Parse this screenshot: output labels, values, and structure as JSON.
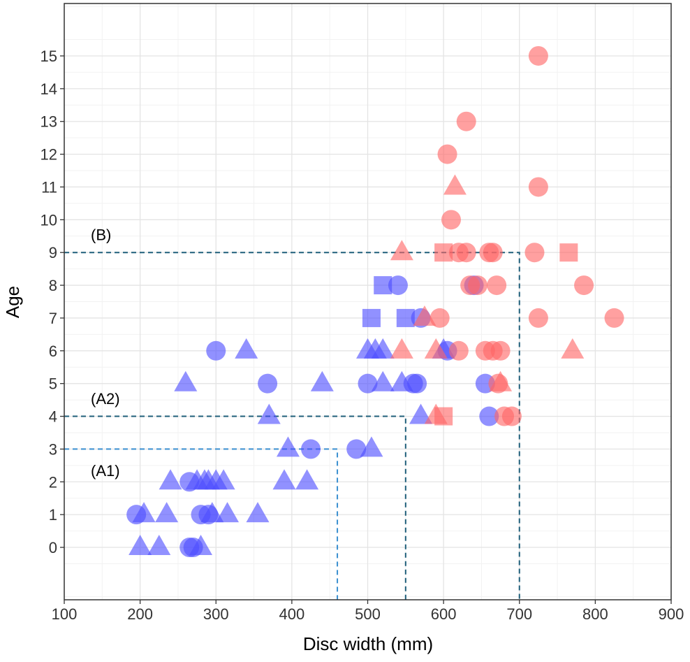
{
  "chart_data": {
    "type": "scatter",
    "title": "",
    "xlabel": "Disc width (mm)",
    "ylabel": "Age",
    "xlim": [
      100,
      900
    ],
    "ylim": [
      -1.6,
      16.6
    ],
    "x_ticks": [
      100,
      200,
      300,
      400,
      500,
      600,
      700,
      800,
      900
    ],
    "y_ticks": [
      0,
      1,
      2,
      3,
      4,
      5,
      6,
      7,
      8,
      9,
      10,
      11,
      12,
      13,
      14,
      15
    ],
    "grid": true,
    "legend": "none",
    "colors": {
      "blue": "#4d4dff",
      "red": "#ff6666",
      "guide_dark": "#1f5f7a",
      "guide_light": "#3a8fd0"
    },
    "series": [
      {
        "color": "blue",
        "points": [
          {
            "x": 195,
            "y": 1,
            "shape": "circle"
          },
          {
            "x": 205,
            "y": 1,
            "shape": "triangle"
          },
          {
            "x": 235,
            "y": 1,
            "shape": "triangle"
          },
          {
            "x": 280,
            "y": 1,
            "shape": "circle"
          },
          {
            "x": 290,
            "y": 1,
            "shape": "circle"
          },
          {
            "x": 295,
            "y": 1,
            "shape": "triangle"
          },
          {
            "x": 315,
            "y": 1,
            "shape": "triangle"
          },
          {
            "x": 355,
            "y": 1,
            "shape": "triangle"
          },
          {
            "x": 200,
            "y": 0,
            "shape": "triangle"
          },
          {
            "x": 225,
            "y": 0,
            "shape": "triangle"
          },
          {
            "x": 265,
            "y": 0,
            "shape": "circle"
          },
          {
            "x": 270,
            "y": 0,
            "shape": "circle"
          },
          {
            "x": 280,
            "y": 0,
            "shape": "triangle"
          },
          {
            "x": 240,
            "y": 2,
            "shape": "triangle"
          },
          {
            "x": 265,
            "y": 2,
            "shape": "circle"
          },
          {
            "x": 275,
            "y": 2,
            "shape": "triangle"
          },
          {
            "x": 285,
            "y": 2,
            "shape": "triangle"
          },
          {
            "x": 290,
            "y": 2,
            "shape": "triangle"
          },
          {
            "x": 300,
            "y": 2,
            "shape": "triangle"
          },
          {
            "x": 310,
            "y": 2,
            "shape": "triangle"
          },
          {
            "x": 390,
            "y": 2,
            "shape": "triangle"
          },
          {
            "x": 420,
            "y": 2,
            "shape": "triangle"
          },
          {
            "x": 395,
            "y": 3,
            "shape": "triangle"
          },
          {
            "x": 425,
            "y": 3,
            "shape": "circle"
          },
          {
            "x": 485,
            "y": 3,
            "shape": "circle"
          },
          {
            "x": 505,
            "y": 3,
            "shape": "triangle"
          },
          {
            "x": 370,
            "y": 4,
            "shape": "triangle"
          },
          {
            "x": 570,
            "y": 4,
            "shape": "triangle"
          },
          {
            "x": 660,
            "y": 4,
            "shape": "circle"
          },
          {
            "x": 260,
            "y": 5,
            "shape": "triangle"
          },
          {
            "x": 368,
            "y": 5,
            "shape": "circle"
          },
          {
            "x": 440,
            "y": 5,
            "shape": "triangle"
          },
          {
            "x": 500,
            "y": 5,
            "shape": "circle"
          },
          {
            "x": 520,
            "y": 5,
            "shape": "triangle"
          },
          {
            "x": 545,
            "y": 5,
            "shape": "triangle"
          },
          {
            "x": 560,
            "y": 5,
            "shape": "circle"
          },
          {
            "x": 565,
            "y": 5,
            "shape": "circle"
          },
          {
            "x": 655,
            "y": 5,
            "shape": "circle"
          },
          {
            "x": 300,
            "y": 6,
            "shape": "circle"
          },
          {
            "x": 340,
            "y": 6,
            "shape": "triangle"
          },
          {
            "x": 500,
            "y": 6,
            "shape": "triangle"
          },
          {
            "x": 510,
            "y": 6,
            "shape": "triangle"
          },
          {
            "x": 520,
            "y": 6,
            "shape": "triangle"
          },
          {
            "x": 600,
            "y": 6,
            "shape": "triangle"
          },
          {
            "x": 605,
            "y": 6,
            "shape": "circle"
          },
          {
            "x": 505,
            "y": 7,
            "shape": "square"
          },
          {
            "x": 550,
            "y": 7,
            "shape": "square"
          },
          {
            "x": 570,
            "y": 7,
            "shape": "circle"
          },
          {
            "x": 520,
            "y": 8,
            "shape": "square"
          },
          {
            "x": 540,
            "y": 8,
            "shape": "circle"
          },
          {
            "x": 640,
            "y": 8,
            "shape": "circle"
          }
        ]
      },
      {
        "color": "red",
        "points": [
          {
            "x": 590,
            "y": 4,
            "shape": "triangle"
          },
          {
            "x": 600,
            "y": 4,
            "shape": "square"
          },
          {
            "x": 680,
            "y": 4,
            "shape": "circle"
          },
          {
            "x": 690,
            "y": 4,
            "shape": "circle"
          },
          {
            "x": 672,
            "y": 5,
            "shape": "circle"
          },
          {
            "x": 675,
            "y": 5,
            "shape": "triangle"
          },
          {
            "x": 545,
            "y": 6,
            "shape": "triangle"
          },
          {
            "x": 590,
            "y": 6,
            "shape": "triangle"
          },
          {
            "x": 620,
            "y": 6,
            "shape": "circle"
          },
          {
            "x": 655,
            "y": 6,
            "shape": "circle"
          },
          {
            "x": 665,
            "y": 6,
            "shape": "circle"
          },
          {
            "x": 675,
            "y": 6,
            "shape": "circle"
          },
          {
            "x": 770,
            "y": 6,
            "shape": "triangle"
          },
          {
            "x": 575,
            "y": 7,
            "shape": "triangle"
          },
          {
            "x": 595,
            "y": 7,
            "shape": "circle"
          },
          {
            "x": 725,
            "y": 7,
            "shape": "circle"
          },
          {
            "x": 825,
            "y": 7,
            "shape": "circle"
          },
          {
            "x": 635,
            "y": 8,
            "shape": "circle"
          },
          {
            "x": 645,
            "y": 8,
            "shape": "circle"
          },
          {
            "x": 670,
            "y": 8,
            "shape": "circle"
          },
          {
            "x": 785,
            "y": 8,
            "shape": "circle"
          },
          {
            "x": 545,
            "y": 9,
            "shape": "triangle"
          },
          {
            "x": 600,
            "y": 9,
            "shape": "square"
          },
          {
            "x": 620,
            "y": 9,
            "shape": "circle"
          },
          {
            "x": 630,
            "y": 9,
            "shape": "circle"
          },
          {
            "x": 660,
            "y": 9,
            "shape": "circle"
          },
          {
            "x": 665,
            "y": 9,
            "shape": "circle"
          },
          {
            "x": 720,
            "y": 9,
            "shape": "circle"
          },
          {
            "x": 765,
            "y": 9,
            "shape": "square"
          },
          {
            "x": 610,
            "y": 10,
            "shape": "circle"
          },
          {
            "x": 615,
            "y": 11,
            "shape": "triangle"
          },
          {
            "x": 725,
            "y": 11,
            "shape": "circle"
          },
          {
            "x": 605,
            "y": 12,
            "shape": "circle"
          },
          {
            "x": 630,
            "y": 13,
            "shape": "circle"
          },
          {
            "x": 725,
            "y": 15,
            "shape": "circle"
          }
        ]
      }
    ],
    "annotations": [
      {
        "text": "(B)",
        "x": 135,
        "y": 9.55
      },
      {
        "text": "(A2)",
        "x": 135,
        "y": 4.55
      },
      {
        "text": "(A1)",
        "x": 135,
        "y": 2.35
      }
    ],
    "guide_lines": [
      {
        "label": "(B)",
        "x": 700,
        "y": 9,
        "color": "guide_dark"
      },
      {
        "label": "(A2)",
        "x": 550,
        "y": 4,
        "color": "guide_dark"
      },
      {
        "label": "(A1)",
        "x": 460,
        "y": 3,
        "color": "guide_light"
      }
    ]
  }
}
